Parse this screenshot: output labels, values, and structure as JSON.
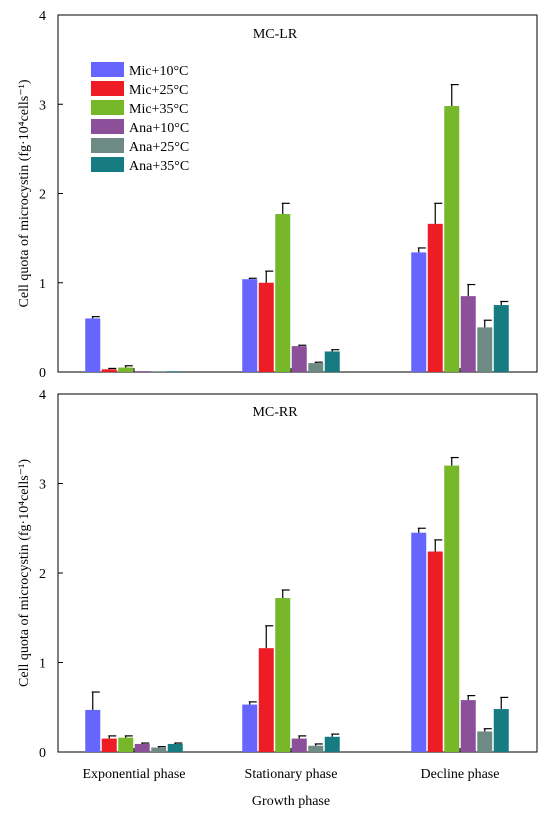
{
  "chart_data": [
    {
      "type": "bar",
      "title": "MC-LR",
      "ylabel": "Cell quota of microcystin (fg·10⁴cells⁻¹)",
      "ylim": [
        0,
        4
      ],
      "yticks": [
        "0",
        "1",
        "2",
        "3",
        "4"
      ],
      "categories": [
        "Exponential phase",
        "Stationary phase",
        "Decline phase"
      ],
      "legend": "top-left",
      "series": [
        {
          "name": "Mic+10°C",
          "color": "#6666ff",
          "values": [
            0.6,
            1.04,
            1.34
          ],
          "errors": [
            0.02,
            0.01,
            0.05
          ]
        },
        {
          "name": "Mic+25°C",
          "color": "#ee1c24",
          "values": [
            0.03,
            1.0,
            1.66
          ],
          "errors": [
            0.01,
            0.13,
            0.23
          ]
        },
        {
          "name": "Mic+35°C",
          "color": "#77b82a",
          "values": [
            0.05,
            1.77,
            2.98
          ],
          "errors": [
            0.02,
            0.12,
            0.24
          ]
        },
        {
          "name": "Ana+10°C",
          "color": "#8c4f99",
          "values": [
            0.01,
            0.29,
            0.85
          ],
          "errors": [
            0.0,
            0.01,
            0.13
          ]
        },
        {
          "name": "Ana+25°C",
          "color": "#6e8a84",
          "values": [
            0.005,
            0.1,
            0.5
          ],
          "errors": [
            0.0,
            0.01,
            0.08
          ]
        },
        {
          "name": "Ana+35°C",
          "color": "#167c82",
          "values": [
            0.005,
            0.23,
            0.75
          ],
          "errors": [
            0.0,
            0.02,
            0.04
          ]
        }
      ]
    },
    {
      "type": "bar",
      "title": "MC-RR",
      "xlabel": "Growth phase",
      "ylabel": "Cell quota of microcystin (fg·10⁴cells⁻¹)",
      "ylim": [
        0,
        4
      ],
      "yticks": [
        "0",
        "1",
        "2",
        "3",
        "4"
      ],
      "categories": [
        "Exponential phase",
        "Stationary phase",
        "Decline phase"
      ],
      "series": [
        {
          "name": "Mic+10°C",
          "color": "#6666ff",
          "values": [
            0.47,
            0.53,
            2.45
          ],
          "errors": [
            0.2,
            0.03,
            0.05
          ]
        },
        {
          "name": "Mic+25°C",
          "color": "#ee1c24",
          "values": [
            0.15,
            1.16,
            2.24
          ],
          "errors": [
            0.03,
            0.25,
            0.13
          ]
        },
        {
          "name": "Mic+35°C",
          "color": "#77b82a",
          "values": [
            0.16,
            1.72,
            3.2
          ],
          "errors": [
            0.02,
            0.09,
            0.09
          ]
        },
        {
          "name": "Ana+10°C",
          "color": "#8c4f99",
          "values": [
            0.09,
            0.15,
            0.58
          ],
          "errors": [
            0.01,
            0.03,
            0.05
          ]
        },
        {
          "name": "Ana+25°C",
          "color": "#6e8a84",
          "values": [
            0.05,
            0.07,
            0.23
          ],
          "errors": [
            0.01,
            0.02,
            0.03
          ]
        },
        {
          "name": "Ana+35°C",
          "color": "#167c82",
          "values": [
            0.09,
            0.17,
            0.48
          ],
          "errors": [
            0.01,
            0.03,
            0.13
          ]
        }
      ]
    }
  ]
}
